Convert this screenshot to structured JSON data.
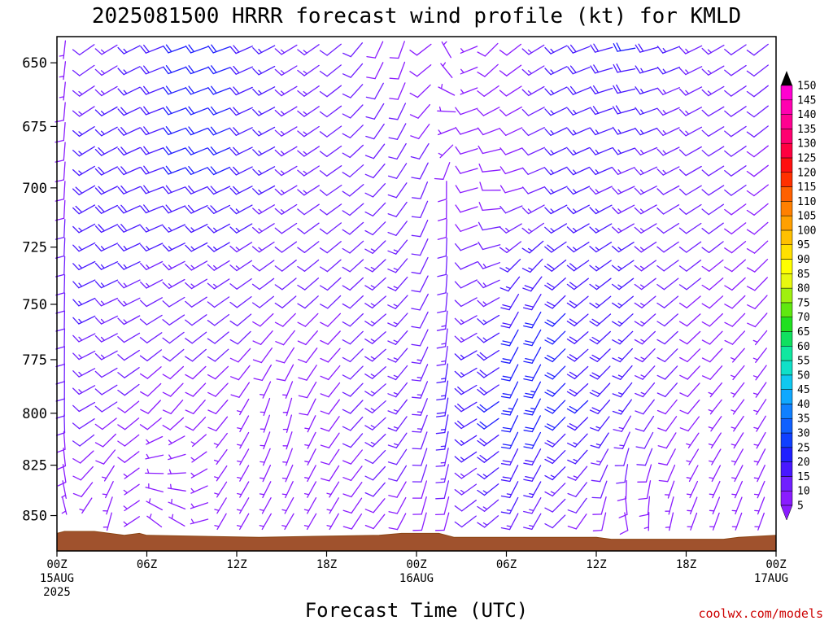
{
  "chart_data": {
    "type": "wind-barb-profile",
    "title": "2025081500 HRRR forecast wind profile (kt) for KMLD",
    "xlabel": "Forecast Time (UTC)",
    "ylabel": "",
    "credit": "coolwx.com/models",
    "x_range_hours": [
      0,
      48
    ],
    "y_range_hpa": [
      640,
      868
    ],
    "y_scale": "log",
    "y_ticks": [
      650,
      675,
      700,
      725,
      750,
      775,
      800,
      825,
      850
    ],
    "x_ticks": [
      {
        "hour": 0,
        "lines": [
          "00Z",
          "15AUG",
          "2025"
        ]
      },
      {
        "hour": 6,
        "lines": [
          "06Z"
        ]
      },
      {
        "hour": 12,
        "lines": [
          "12Z"
        ]
      },
      {
        "hour": 18,
        "lines": [
          "18Z"
        ]
      },
      {
        "hour": 24,
        "lines": [
          "00Z",
          "16AUG"
        ]
      },
      {
        "hour": 30,
        "lines": [
          "06Z"
        ]
      },
      {
        "hour": 36,
        "lines": [
          "12Z"
        ]
      },
      {
        "hour": 42,
        "lines": [
          "18Z"
        ]
      },
      {
        "hour": 48,
        "lines": [
          "00Z",
          "17AUG"
        ]
      }
    ],
    "colorbar": {
      "unit": "kt",
      "levels": [
        5,
        10,
        15,
        20,
        25,
        30,
        35,
        40,
        45,
        50,
        55,
        60,
        65,
        70,
        75,
        80,
        85,
        90,
        95,
        100,
        105,
        110,
        115,
        120,
        125,
        130,
        135,
        140,
        145,
        150
      ],
      "colors": [
        "#8a1cff",
        "#7020ff",
        "#4818ff",
        "#2020ff",
        "#1040ff",
        "#1060ff",
        "#1080ff",
        "#10a8ff",
        "#10c8f0",
        "#10e0c8",
        "#10e8a0",
        "#10e060",
        "#20e020",
        "#60e810",
        "#a0f010",
        "#e8f810",
        "#ffff00",
        "#ffe000",
        "#ffc000",
        "#ffa000",
        "#ff8000",
        "#ff6000",
        "#ff3000",
        "#ff1010",
        "#ff0040",
        "#ff0070",
        "#ff0090",
        "#ff00b0",
        "#ff00d0",
        "#ff40ff"
      ]
    },
    "terrain_hpa": [
      {
        "hour": 0,
        "p": 859
      },
      {
        "hour": 0.5,
        "p": 858
      },
      {
        "hour": 2.5,
        "p": 858
      },
      {
        "hour": 3.5,
        "p": 859
      },
      {
        "hour": 4.5,
        "p": 860
      },
      {
        "hour": 5.5,
        "p": 859
      },
      {
        "hour": 6,
        "p": 860
      },
      {
        "hour": 13.5,
        "p": 861
      },
      {
        "hour": 21.5,
        "p": 860
      },
      {
        "hour": 23,
        "p": 859
      },
      {
        "hour": 25.5,
        "p": 859
      },
      {
        "hour": 26.5,
        "p": 861
      },
      {
        "hour": 36,
        "p": 861
      },
      {
        "hour": 37,
        "p": 862
      },
      {
        "hour": 44.5,
        "p": 862
      },
      {
        "hour": 45.5,
        "p": 861
      },
      {
        "hour": 48,
        "p": 860
      }
    ],
    "wind_profile_keyframes": [
      {
        "hour": 0,
        "levels": [
          [
            650,
            170,
            5
          ],
          [
            700,
            165,
            7
          ],
          [
            750,
            160,
            9
          ],
          [
            800,
            160,
            10
          ],
          [
            850,
            150,
            6
          ]
        ]
      },
      {
        "hour": 2,
        "levels": [
          [
            650,
            235,
            12
          ],
          [
            700,
            240,
            18
          ],
          [
            750,
            245,
            16
          ],
          [
            800,
            240,
            12
          ],
          [
            850,
            210,
            6
          ]
        ]
      },
      {
        "hour": 4,
        "levels": [
          [
            650,
            240,
            14
          ],
          [
            700,
            245,
            20
          ],
          [
            750,
            245,
            14
          ],
          [
            800,
            235,
            10
          ],
          [
            850,
            190,
            5
          ]
        ]
      },
      {
        "hour": 7,
        "levels": [
          [
            650,
            250,
            20
          ],
          [
            700,
            250,
            20
          ],
          [
            750,
            240,
            12
          ],
          [
            800,
            220,
            8
          ],
          [
            850,
            330,
            5
          ]
        ]
      },
      {
        "hour": 11,
        "levels": [
          [
            650,
            250,
            20
          ],
          [
            700,
            245,
            20
          ],
          [
            750,
            235,
            12
          ],
          [
            800,
            220,
            8
          ],
          [
            850,
            210,
            5
          ]
        ]
      },
      {
        "hour": 15,
        "levels": [
          [
            650,
            240,
            14
          ],
          [
            700,
            240,
            14
          ],
          [
            750,
            230,
            10
          ],
          [
            800,
            190,
            6
          ],
          [
            850,
            210,
            5
          ]
        ]
      },
      {
        "hour": 19,
        "levels": [
          [
            650,
            230,
            12
          ],
          [
            700,
            235,
            12
          ],
          [
            750,
            225,
            10
          ],
          [
            800,
            220,
            9
          ],
          [
            850,
            210,
            7
          ]
        ]
      },
      {
        "hour": 22,
        "levels": [
          [
            650,
            200,
            9
          ],
          [
            700,
            220,
            12
          ],
          [
            750,
            230,
            14
          ],
          [
            800,
            230,
            16
          ],
          [
            850,
            220,
            9
          ]
        ]
      },
      {
        "hour": 24,
        "levels": [
          [
            650,
            200,
            9
          ],
          [
            700,
            210,
            12
          ],
          [
            750,
            215,
            12
          ],
          [
            800,
            205,
            12
          ],
          [
            850,
            195,
            8
          ]
        ]
      },
      {
        "hour": 26,
        "levels": [
          [
            650,
            330,
            5
          ],
          [
            700,
            180,
            8
          ],
          [
            750,
            185,
            12
          ],
          [
            800,
            190,
            18
          ],
          [
            850,
            195,
            9
          ]
        ]
      },
      {
        "hour": 28,
        "levels": [
          [
            650,
            220,
            8
          ],
          [
            700,
            280,
            8
          ],
          [
            750,
            260,
            12
          ],
          [
            800,
            255,
            20
          ],
          [
            850,
            245,
            12
          ]
        ]
      },
      {
        "hour": 31,
        "levels": [
          [
            650,
            235,
            10
          ],
          [
            700,
            250,
            10
          ],
          [
            750,
            200,
            20
          ],
          [
            800,
            195,
            24
          ],
          [
            850,
            200,
            15
          ]
        ]
      },
      {
        "hour": 34,
        "levels": [
          [
            650,
            245,
            18
          ],
          [
            700,
            245,
            16
          ],
          [
            750,
            230,
            20
          ],
          [
            800,
            230,
            22
          ],
          [
            850,
            230,
            10
          ]
        ]
      },
      {
        "hour": 38,
        "levels": [
          [
            650,
            260,
            20
          ],
          [
            700,
            245,
            14
          ],
          [
            750,
            230,
            16
          ],
          [
            800,
            215,
            15
          ],
          [
            850,
            170,
            8
          ]
        ]
      },
      {
        "hour": 42,
        "levels": [
          [
            650,
            245,
            14
          ],
          [
            700,
            240,
            12
          ],
          [
            750,
            230,
            10
          ],
          [
            800,
            220,
            8
          ],
          [
            850,
            200,
            6
          ]
        ]
      },
      {
        "hour": 46,
        "levels": [
          [
            650,
            235,
            12
          ],
          [
            700,
            235,
            10
          ],
          [
            750,
            225,
            8
          ],
          [
            800,
            215,
            6
          ],
          [
            850,
            200,
            5
          ]
        ]
      },
      {
        "hour": 48,
        "levels": [
          [
            650,
            230,
            10
          ],
          [
            700,
            230,
            9
          ],
          [
            750,
            220,
            8
          ],
          [
            800,
            210,
            6
          ],
          [
            850,
            200,
            5
          ]
        ]
      }
    ]
  }
}
